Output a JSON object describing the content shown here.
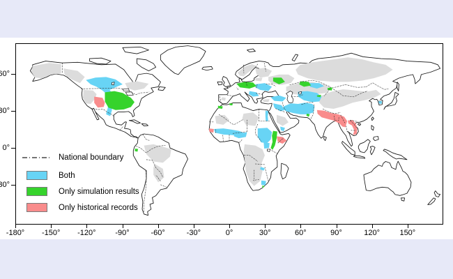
{
  "figure": {
    "type": "world-map",
    "legend": {
      "items": [
        {
          "type": "line",
          "label": "National boundary"
        },
        {
          "type": "swatch",
          "label": "Both",
          "color_key": "both"
        },
        {
          "type": "swatch",
          "label": "Only simulation results",
          "color_key": "simulation"
        },
        {
          "type": "swatch",
          "label": "Only historical records",
          "color_key": "historical"
        }
      ]
    },
    "axes": {
      "x": {
        "tick_labels": [
          "-180°",
          "-150°",
          "-120°",
          "-90°",
          "-60°",
          "-30°",
          "0°",
          "30°",
          "60°",
          "90°",
          "120°",
          "150°"
        ]
      },
      "y": {
        "ticks": [
          {
            "label": "60°",
            "lat": 60
          },
          {
            "label": "30°",
            "lat": 30
          },
          {
            "label": "0°",
            "lat": 0
          },
          {
            "label": "-30°",
            "lat": -30
          }
        ]
      }
    },
    "colors": {
      "both": "#68D4F5",
      "simulation": "#36D32C",
      "historical": "#F98C8C",
      "no_data": "#DCDCDC",
      "land": "#FFFFFF",
      "coastline": "#151515",
      "boundary": "#2B2B2B",
      "page_background": "#E7E9F8",
      "figure_background": "#FFFFFF"
    }
  }
}
